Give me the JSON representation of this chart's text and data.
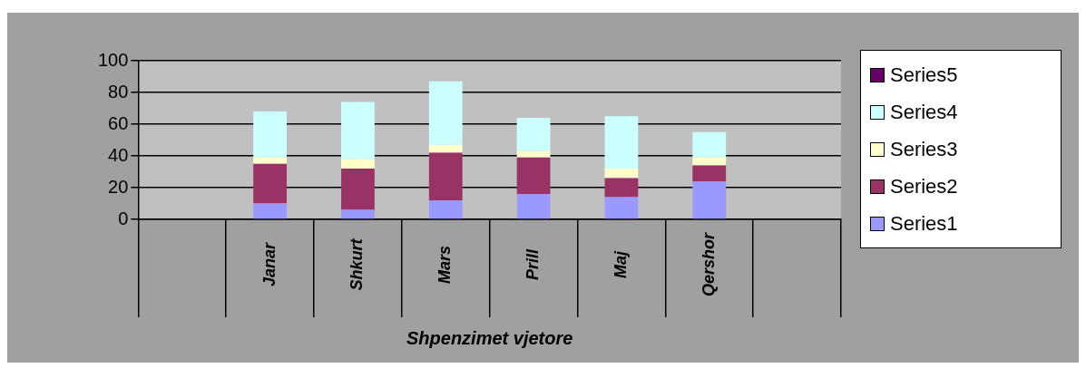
{
  "chart_data": {
    "type": "bar",
    "stacked": true,
    "xlabel": "Shpenzimet vjetore",
    "categories": [
      null,
      "Janar",
      "Shkurt",
      "Mars",
      "Prill",
      "Maj",
      "Qershor",
      null
    ],
    "series": [
      {
        "name": "Series1",
        "color": "#9999ff",
        "values": [
          null,
          10,
          6,
          12,
          16,
          14,
          24,
          null
        ]
      },
      {
        "name": "Series2",
        "color": "#993366",
        "values": [
          null,
          25,
          26,
          30,
          23,
          12,
          10,
          null
        ]
      },
      {
        "name": "Series3",
        "color": "#ffffcc",
        "values": [
          null,
          4,
          6,
          5,
          4,
          6,
          5,
          null
        ]
      },
      {
        "name": "Series4",
        "color": "#ccffff",
        "values": [
          null,
          29,
          36,
          40,
          21,
          33,
          16,
          null
        ]
      },
      {
        "name": "Series5",
        "color": "#660066",
        "values": [
          null,
          0,
          0,
          0,
          0,
          0,
          0,
          null
        ]
      }
    ],
    "ylim": [
      0,
      100
    ],
    "yticks": [
      0,
      20,
      40,
      60,
      80,
      100
    ],
    "grid": "y",
    "legend": "right"
  }
}
